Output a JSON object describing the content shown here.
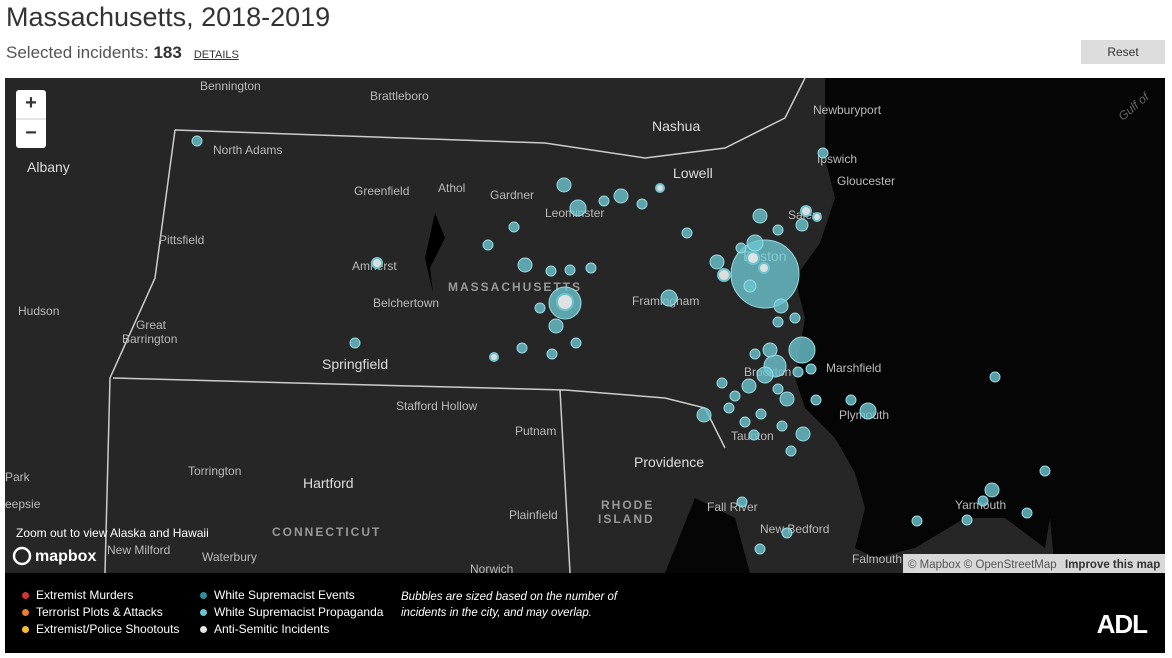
{
  "header": {
    "title": "Massachusetts, 2018-2019",
    "selected_label": "Selected incidents:",
    "selected_count": "183",
    "details": "DETAILS",
    "reset": "Reset"
  },
  "map": {
    "zoom_in": "+",
    "zoom_out": "−",
    "zoom_note": "Zoom out to view Alaska and Hawaii",
    "logo": "mapbox",
    "attribution": "© Mapbox © OpenStreetMap",
    "improve": "Improve this map",
    "labels": [
      "Bennington",
      "Brattleboro",
      "Nashua",
      "Newburyport",
      "North Adams",
      "Albany",
      "Ipswich",
      "Greenfield",
      "Athol",
      "Gardner",
      "Lowell",
      "Gloucester",
      "Leominster",
      "Salem",
      "Pittsfield",
      "Amherst",
      "Boston",
      "MASSACHUSETTS",
      "Belchertown",
      "Hudson",
      "Framingham",
      "Great",
      "Barrington",
      "Springfield",
      "Marshfield",
      "Brockton",
      "Plymouth",
      "Stafford Hollow",
      "Putnam",
      "Taunton",
      "Providence",
      "Torrington",
      "Park",
      "Hartford",
      "Fall River",
      "Yarmouth",
      "RHODE",
      "ISLAND",
      "Plainfield",
      "eepsie",
      "CONNECTICUT",
      "New Bedford",
      "New Milford",
      "Waterbury",
      "Falmouth",
      "Norwich",
      "Gulf of"
    ]
  },
  "legend": {
    "items": [
      {
        "label": "Extremist Murders",
        "color": "#d0343a"
      },
      {
        "label": "Terrorist Plots & Attacks",
        "color": "#f07a2a"
      },
      {
        "label": "Extremist/Police Shootouts",
        "color": "#f5c030"
      },
      {
        "label": "White Supremacist Events",
        "color": "#2b8f9c"
      },
      {
        "label": "White Supremacist Propaganda",
        "color": "#6cc4cf"
      },
      {
        "label": "Anti-Semitic Incidents",
        "color": "#e6e6e6"
      }
    ],
    "note": "Bubbles are sized based on the number of incidents in the city, and may overlap.",
    "brand": "ADL"
  }
}
